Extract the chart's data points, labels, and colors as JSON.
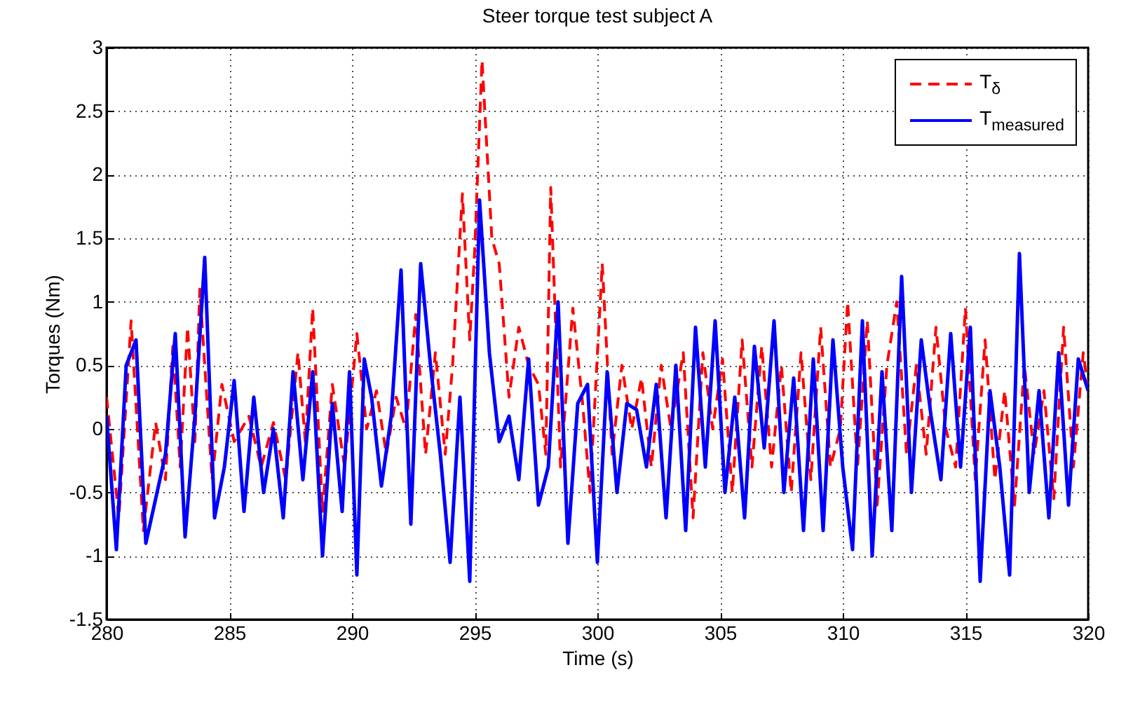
{
  "chart_data": {
    "type": "line",
    "title": "Steer torque test subject A",
    "xlabel": "Time (s)",
    "ylabel": "Torques (Nm)",
    "xlim": [
      280,
      320
    ],
    "xticks": [
      280,
      285,
      290,
      295,
      300,
      305,
      310,
      315,
      320
    ],
    "ylim": [
      -1.5,
      3
    ],
    "yticks": [
      -1.5,
      -1,
      -0.5,
      0,
      0.5,
      1,
      1.5,
      2,
      2.5,
      3
    ],
    "grid": true,
    "legend": "top right",
    "series": [
      {
        "name": "T$_{δ}$",
        "color": "#ff0000",
        "line_style": "dashed",
        "x": [
          280.0,
          280.5,
          281.0,
          281.5,
          282.0,
          282.4,
          282.7,
          283.0,
          283.3,
          283.6,
          283.8,
          284.3,
          284.7,
          285.2,
          285.8,
          286.3,
          286.8,
          287.3,
          287.8,
          288.1,
          288.4,
          288.8,
          289.2,
          289.7,
          290.2,
          290.6,
          291.0,
          291.4,
          291.8,
          292.2,
          292.6,
          293.0,
          293.4,
          293.8,
          294.1,
          294.5,
          294.8,
          295.0,
          295.3,
          295.7,
          296.0,
          296.4,
          296.8,
          297.2,
          297.6,
          297.9,
          298.1,
          298.5,
          299.0,
          299.4,
          299.7,
          300.2,
          300.6,
          301.0,
          301.4,
          301.8,
          302.2,
          302.6,
          303.0,
          303.5,
          303.9,
          304.3,
          304.7,
          305.1,
          305.5,
          305.9,
          306.3,
          306.7,
          307.1,
          307.5,
          307.9,
          308.3,
          308.7,
          309.1,
          309.5,
          309.9,
          310.2,
          310.6,
          311.0,
          311.4,
          311.8,
          312.2,
          312.6,
          313.0,
          313.4,
          313.8,
          314.2,
          314.6,
          315.0,
          315.4,
          315.8,
          316.2,
          316.6,
          317.0,
          317.4,
          317.8,
          318.2,
          318.6,
          319.0,
          319.4,
          319.8,
          320.0
        ],
        "values": [
          0.25,
          -0.7,
          0.85,
          -0.8,
          0.05,
          -0.4,
          0.65,
          -0.3,
          0.8,
          -0.1,
          1.1,
          -0.4,
          0.35,
          -0.1,
          0.1,
          -0.3,
          0.05,
          -0.4,
          0.6,
          -0.1,
          0.95,
          -0.65,
          0.35,
          -0.3,
          0.75,
          0.0,
          0.3,
          -0.2,
          0.25,
          0.0,
          0.9,
          -0.2,
          0.6,
          -0.2,
          0.5,
          1.85,
          0.7,
          1.4,
          2.9,
          1.5,
          1.3,
          0.25,
          0.8,
          0.5,
          0.35,
          -0.2,
          1.9,
          -0.3,
          0.95,
          0.2,
          -0.5,
          1.3,
          -0.2,
          0.5,
          0.0,
          0.4,
          -0.3,
          0.5,
          0.0,
          0.6,
          -0.7,
          0.6,
          0.0,
          0.55,
          -0.5,
          0.7,
          -0.3,
          0.65,
          -0.3,
          0.5,
          -0.5,
          0.6,
          -0.4,
          0.8,
          -0.3,
          0.0,
          1.0,
          -0.3,
          0.85,
          -0.6,
          0.5,
          1.0,
          -0.2,
          0.5,
          -0.2,
          0.8,
          0.0,
          -0.3,
          0.95,
          -0.4,
          0.7,
          -0.4,
          0.3,
          -0.6,
          0.5,
          -0.2,
          0.3,
          -0.55,
          0.8,
          -0.3,
          0.6,
          0.3
        ]
      },
      {
        "name": "T$_{measured}$",
        "color": "#0000ff",
        "line_style": "solid",
        "x": [
          280.0,
          280.4,
          280.8,
          281.2,
          281.6,
          282.0,
          282.4,
          282.8,
          283.2,
          283.6,
          284.0,
          284.4,
          284.8,
          285.2,
          285.6,
          286.0,
          286.4,
          286.8,
          287.2,
          287.6,
          288.0,
          288.4,
          288.8,
          289.2,
          289.6,
          289.9,
          290.2,
          290.5,
          290.8,
          291.2,
          291.6,
          292.0,
          292.4,
          292.8,
          293.2,
          293.6,
          294.0,
          294.4,
          294.8,
          295.2,
          295.6,
          296.0,
          296.4,
          296.8,
          297.2,
          297.6,
          298.0,
          298.4,
          298.8,
          299.2,
          299.6,
          300.0,
          300.4,
          300.8,
          301.2,
          301.6,
          302.0,
          302.4,
          302.8,
          303.2,
          303.6,
          304.0,
          304.4,
          304.8,
          305.2,
          305.6,
          306.0,
          306.4,
          306.8,
          307.2,
          307.6,
          308.0,
          308.4,
          308.8,
          309.2,
          309.6,
          310.0,
          310.4,
          310.8,
          311.2,
          311.6,
          312.0,
          312.4,
          312.8,
          313.2,
          313.6,
          314.0,
          314.4,
          314.8,
          315.2,
          315.6,
          316.0,
          316.4,
          316.8,
          317.2,
          317.6,
          318.0,
          318.4,
          318.8,
          319.2,
          319.6,
          320.0
        ],
        "values": [
          0.1,
          -0.95,
          0.5,
          0.7,
          -0.9,
          -0.55,
          -0.2,
          0.75,
          -0.85,
          0.1,
          1.35,
          -0.7,
          -0.3,
          0.38,
          -0.65,
          0.25,
          -0.5,
          0.0,
          -0.7,
          0.45,
          -0.4,
          0.45,
          -1.0,
          0.2,
          -0.65,
          0.45,
          -1.15,
          0.55,
          0.25,
          -0.45,
          0.1,
          1.25,
          -0.75,
          1.3,
          0.5,
          -0.2,
          -1.05,
          0.25,
          -1.2,
          1.8,
          0.6,
          -0.1,
          0.1,
          -0.4,
          0.55,
          -0.6,
          -0.3,
          1.0,
          -0.9,
          0.2,
          0.35,
          -1.05,
          0.45,
          -0.5,
          0.2,
          0.15,
          -0.3,
          0.35,
          -0.7,
          0.5,
          -0.8,
          0.8,
          -0.3,
          0.85,
          -0.5,
          0.25,
          -0.7,
          0.65,
          -0.15,
          0.85,
          -0.5,
          0.4,
          -0.8,
          0.55,
          -0.8,
          0.7,
          -0.3,
          -0.95,
          0.85,
          -1.0,
          0.45,
          -0.8,
          1.2,
          -0.5,
          0.7,
          0.1,
          -0.4,
          0.75,
          -0.3,
          0.8,
          -1.2,
          0.3,
          -0.3,
          -1.15,
          1.38,
          -0.5,
          0.3,
          -0.7,
          0.6,
          -0.6,
          0.55,
          0.3
        ]
      }
    ]
  }
}
